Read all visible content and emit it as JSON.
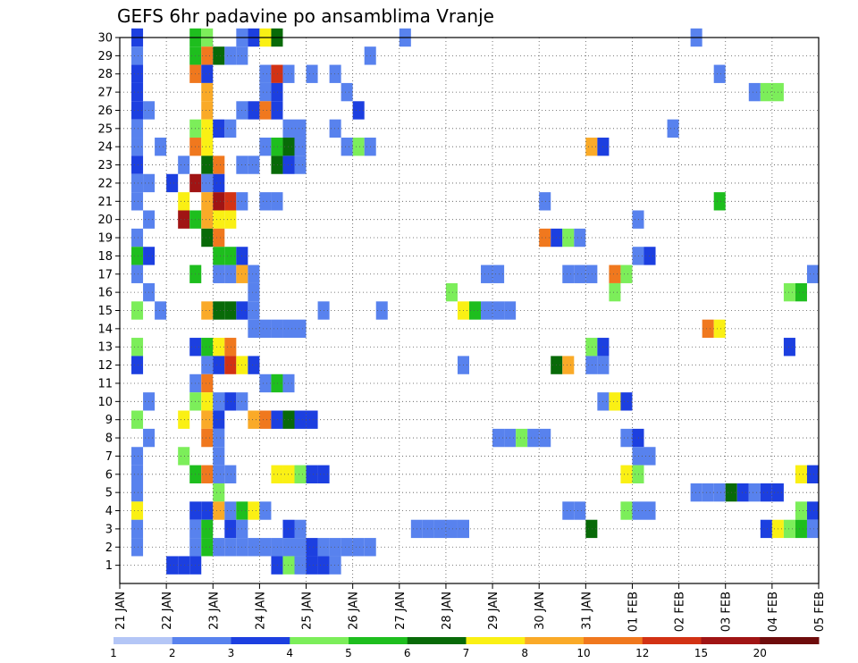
{
  "chart_data": {
    "type": "heatmap",
    "title": "GEFS 6hr padavine po ansamblima Vranje",
    "xlabel": "",
    "ylabel": "",
    "x_ticks": [
      "21 JAN",
      "22 JAN",
      "23 JAN",
      "24 JAN",
      "25 JAN",
      "26 JAN",
      "27 JAN",
      "28 JAN",
      "29 JAN",
      "30 JAN",
      "31 JAN",
      "01 FEB",
      "02 FEB",
      "03 FEB",
      "04 FEB",
      "05 FEB"
    ],
    "y_ticks": [
      "1",
      "2",
      "3",
      "4",
      "5",
      "6",
      "7",
      "8",
      "9",
      "10",
      "11",
      "12",
      "13",
      "14",
      "15",
      "16",
      "17",
      "18",
      "19",
      "20",
      "21",
      "22",
      "23",
      "24",
      "25",
      "26",
      "27",
      "28",
      "29",
      "30"
    ],
    "xlim": [
      0,
      60
    ],
    "ylim": [
      0,
      30
    ],
    "grid": true,
    "colorbar": {
      "position": "bottom",
      "labels": [
        "1",
        "2",
        "3",
        "4",
        "5",
        "6",
        "7",
        "8",
        "10",
        "12",
        "15",
        "20"
      ],
      "colors": [
        "#b4c6f6",
        "#5882ee",
        "#1c3fe0",
        "#7cee5a",
        "#1ebe1e",
        "#086a08",
        "#faf014",
        "#faaa28",
        "#f0781e",
        "#d23214",
        "#a01414",
        "#6e0c0c"
      ]
    },
    "cells": [
      [
        1,
        30,
        2
      ],
      [
        6,
        30,
        4
      ],
      [
        7,
        30,
        3
      ],
      [
        10,
        30,
        1
      ],
      [
        11,
        30,
        2
      ],
      [
        12,
        30,
        6
      ],
      [
        13,
        30,
        5
      ],
      [
        24,
        30,
        1
      ],
      [
        49,
        30,
        1
      ],
      [
        1,
        29,
        1
      ],
      [
        6,
        29,
        4
      ],
      [
        7,
        29,
        8
      ],
      [
        8,
        29,
        5
      ],
      [
        9,
        29,
        1
      ],
      [
        10,
        29,
        1
      ],
      [
        21,
        29,
        1
      ],
      [
        1,
        28,
        2
      ],
      [
        6,
        28,
        8
      ],
      [
        7,
        28,
        2
      ],
      [
        12,
        28,
        1
      ],
      [
        13,
        28,
        9
      ],
      [
        14,
        28,
        1
      ],
      [
        16,
        28,
        1
      ],
      [
        18,
        28,
        1
      ],
      [
        51,
        28,
        1
      ],
      [
        1,
        27,
        2
      ],
      [
        7,
        27,
        7
      ],
      [
        12,
        27,
        1
      ],
      [
        13,
        27,
        2
      ],
      [
        19,
        27,
        1
      ],
      [
        54,
        27,
        1
      ],
      [
        55,
        27,
        3
      ],
      [
        56,
        27,
        3
      ],
      [
        1,
        26,
        2
      ],
      [
        2,
        26,
        1
      ],
      [
        7,
        26,
        7
      ],
      [
        10,
        26,
        1
      ],
      [
        11,
        26,
        2
      ],
      [
        12,
        26,
        8
      ],
      [
        13,
        26,
        2
      ],
      [
        20,
        26,
        2
      ],
      [
        1,
        25,
        1
      ],
      [
        6,
        25,
        3
      ],
      [
        7,
        25,
        6
      ],
      [
        8,
        25,
        2
      ],
      [
        9,
        25,
        1
      ],
      [
        14,
        25,
        1
      ],
      [
        15,
        25,
        1
      ],
      [
        18,
        25,
        1
      ],
      [
        47,
        25,
        1
      ],
      [
        1,
        24,
        1
      ],
      [
        3,
        24,
        1
      ],
      [
        6,
        24,
        8
      ],
      [
        7,
        24,
        6
      ],
      [
        12,
        24,
        1
      ],
      [
        13,
        24,
        4
      ],
      [
        14,
        24,
        5
      ],
      [
        15,
        24,
        1
      ],
      [
        19,
        24,
        1
      ],
      [
        20,
        24,
        3
      ],
      [
        21,
        24,
        1
      ],
      [
        40,
        24,
        7
      ],
      [
        41,
        24,
        2
      ],
      [
        1,
        23,
        2
      ],
      [
        5,
        23,
        1
      ],
      [
        7,
        23,
        5
      ],
      [
        8,
        23,
        8
      ],
      [
        10,
        23,
        1
      ],
      [
        11,
        23,
        1
      ],
      [
        13,
        23,
        5
      ],
      [
        14,
        23,
        2
      ],
      [
        15,
        23,
        1
      ],
      [
        1,
        22,
        1
      ],
      [
        2,
        22,
        1
      ],
      [
        4,
        22,
        2
      ],
      [
        6,
        22,
        10
      ],
      [
        7,
        22,
        1
      ],
      [
        8,
        22,
        2
      ],
      [
        1,
        21,
        1
      ],
      [
        5,
        21,
        6
      ],
      [
        7,
        21,
        7
      ],
      [
        8,
        21,
        10
      ],
      [
        9,
        21,
        9
      ],
      [
        10,
        21,
        1
      ],
      [
        12,
        21,
        1
      ],
      [
        13,
        21,
        1
      ],
      [
        36,
        21,
        1
      ],
      [
        51,
        21,
        4
      ],
      [
        2,
        20,
        1
      ],
      [
        5,
        20,
        10
      ],
      [
        6,
        20,
        4
      ],
      [
        7,
        20,
        7
      ],
      [
        8,
        20,
        6
      ],
      [
        9,
        20,
        6
      ],
      [
        44,
        20,
        1
      ],
      [
        1,
        19,
        1
      ],
      [
        7,
        19,
        5
      ],
      [
        8,
        19,
        8
      ],
      [
        36,
        19,
        8
      ],
      [
        37,
        19,
        2
      ],
      [
        38,
        19,
        3
      ],
      [
        39,
        19,
        1
      ],
      [
        1,
        18,
        4
      ],
      [
        2,
        18,
        2
      ],
      [
        8,
        18,
        4
      ],
      [
        9,
        18,
        4
      ],
      [
        10,
        18,
        2
      ],
      [
        44,
        18,
        1
      ],
      [
        45,
        18,
        2
      ],
      [
        1,
        17,
        1
      ],
      [
        6,
        17,
        4
      ],
      [
        8,
        17,
        1
      ],
      [
        9,
        17,
        1
      ],
      [
        10,
        17,
        7
      ],
      [
        11,
        17,
        1
      ],
      [
        31,
        17,
        1
      ],
      [
        32,
        17,
        1
      ],
      [
        38,
        17,
        1
      ],
      [
        39,
        17,
        1
      ],
      [
        40,
        17,
        1
      ],
      [
        42,
        17,
        8
      ],
      [
        43,
        17,
        3
      ],
      [
        59,
        17,
        1
      ],
      [
        2,
        16,
        1
      ],
      [
        11,
        16,
        1
      ],
      [
        28,
        16,
        3
      ],
      [
        42,
        16,
        3
      ],
      [
        57,
        16,
        3
      ],
      [
        58,
        16,
        4
      ],
      [
        1,
        15,
        3
      ],
      [
        3,
        15,
        1
      ],
      [
        7,
        15,
        7
      ],
      [
        8,
        15,
        5
      ],
      [
        9,
        15,
        5
      ],
      [
        10,
        15,
        2
      ],
      [
        11,
        15,
        1
      ],
      [
        17,
        15,
        1
      ],
      [
        22,
        15,
        1
      ],
      [
        29,
        15,
        6
      ],
      [
        30,
        15,
        4
      ],
      [
        31,
        15,
        1
      ],
      [
        32,
        15,
        1
      ],
      [
        33,
        15,
        1
      ],
      [
        11,
        14,
        1
      ],
      [
        12,
        14,
        1
      ],
      [
        13,
        14,
        1
      ],
      [
        14,
        14,
        1
      ],
      [
        15,
        14,
        1
      ],
      [
        50,
        14,
        8
      ],
      [
        51,
        14,
        6
      ],
      [
        1,
        13,
        3
      ],
      [
        6,
        13,
        2
      ],
      [
        7,
        13,
        4
      ],
      [
        8,
        13,
        6
      ],
      [
        9,
        13,
        8
      ],
      [
        40,
        13,
        3
      ],
      [
        41,
        13,
        2
      ],
      [
        57,
        13,
        2
      ],
      [
        1,
        12,
        2
      ],
      [
        7,
        12,
        1
      ],
      [
        8,
        12,
        2
      ],
      [
        9,
        12,
        9
      ],
      [
        10,
        12,
        6
      ],
      [
        11,
        12,
        2
      ],
      [
        29,
        12,
        1
      ],
      [
        37,
        12,
        5
      ],
      [
        38,
        12,
        7
      ],
      [
        40,
        12,
        1
      ],
      [
        41,
        12,
        1
      ],
      [
        6,
        11,
        1
      ],
      [
        7,
        11,
        8
      ],
      [
        12,
        11,
        1
      ],
      [
        13,
        11,
        4
      ],
      [
        14,
        11,
        1
      ],
      [
        2,
        10,
        1
      ],
      [
        6,
        10,
        3
      ],
      [
        7,
        10,
        6
      ],
      [
        8,
        10,
        1
      ],
      [
        9,
        10,
        2
      ],
      [
        10,
        10,
        1
      ],
      [
        41,
        10,
        1
      ],
      [
        42,
        10,
        6
      ],
      [
        43,
        10,
        2
      ],
      [
        1,
        9,
        3
      ],
      [
        5,
        9,
        6
      ],
      [
        7,
        9,
        7
      ],
      [
        8,
        9,
        2
      ],
      [
        11,
        9,
        7
      ],
      [
        12,
        9,
        8
      ],
      [
        13,
        9,
        2
      ],
      [
        14,
        9,
        5
      ],
      [
        15,
        9,
        2
      ],
      [
        16,
        9,
        2
      ],
      [
        2,
        8,
        1
      ],
      [
        7,
        8,
        8
      ],
      [
        8,
        8,
        1
      ],
      [
        32,
        8,
        1
      ],
      [
        33,
        8,
        1
      ],
      [
        34,
        8,
        3
      ],
      [
        35,
        8,
        1
      ],
      [
        36,
        8,
        1
      ],
      [
        43,
        8,
        1
      ],
      [
        44,
        8,
        2
      ],
      [
        1,
        7,
        1
      ],
      [
        5,
        7,
        3
      ],
      [
        8,
        7,
        1
      ],
      [
        44,
        7,
        1
      ],
      [
        45,
        7,
        1
      ],
      [
        1,
        6,
        1
      ],
      [
        6,
        6,
        4
      ],
      [
        7,
        6,
        8
      ],
      [
        8,
        6,
        1
      ],
      [
        9,
        6,
        1
      ],
      [
        13,
        6,
        6
      ],
      [
        14,
        6,
        6
      ],
      [
        15,
        6,
        3
      ],
      [
        16,
        6,
        2
      ],
      [
        17,
        6,
        2
      ],
      [
        43,
        6,
        6
      ],
      [
        44,
        6,
        3
      ],
      [
        58,
        6,
        6
      ],
      [
        59,
        6,
        2
      ],
      [
        1,
        5,
        1
      ],
      [
        8,
        5,
        3
      ],
      [
        49,
        5,
        1
      ],
      [
        50,
        5,
        1
      ],
      [
        51,
        5,
        1
      ],
      [
        52,
        5,
        5
      ],
      [
        53,
        5,
        2
      ],
      [
        54,
        5,
        1
      ],
      [
        55,
        5,
        2
      ],
      [
        56,
        5,
        2
      ],
      [
        1,
        4,
        6
      ],
      [
        6,
        4,
        2
      ],
      [
        7,
        4,
        2
      ],
      [
        8,
        4,
        7
      ],
      [
        9,
        4,
        1
      ],
      [
        10,
        4,
        4
      ],
      [
        11,
        4,
        6
      ],
      [
        12,
        4,
        1
      ],
      [
        38,
        4,
        1
      ],
      [
        39,
        4,
        1
      ],
      [
        43,
        4,
        3
      ],
      [
        44,
        4,
        1
      ],
      [
        45,
        4,
        1
      ],
      [
        58,
        4,
        3
      ],
      [
        59,
        4,
        2
      ],
      [
        1,
        3,
        1
      ],
      [
        6,
        3,
        1
      ],
      [
        7,
        3,
        4
      ],
      [
        9,
        3,
        2
      ],
      [
        10,
        3,
        1
      ],
      [
        14,
        3,
        2
      ],
      [
        15,
        3,
        1
      ],
      [
        25,
        3,
        1
      ],
      [
        26,
        3,
        1
      ],
      [
        27,
        3,
        1
      ],
      [
        28,
        3,
        1
      ],
      [
        29,
        3,
        1
      ],
      [
        40,
        3,
        5
      ],
      [
        55,
        3,
        2
      ],
      [
        56,
        3,
        6
      ],
      [
        57,
        3,
        3
      ],
      [
        58,
        3,
        4
      ],
      [
        59,
        3,
        1
      ],
      [
        1,
        2,
        1
      ],
      [
        6,
        2,
        1
      ],
      [
        7,
        2,
        4
      ],
      [
        8,
        2,
        1
      ],
      [
        9,
        2,
        1
      ],
      [
        10,
        2,
        1
      ],
      [
        11,
        2,
        1
      ],
      [
        12,
        2,
        1
      ],
      [
        13,
        2,
        1
      ],
      [
        14,
        2,
        1
      ],
      [
        15,
        2,
        1
      ],
      [
        16,
        2,
        2
      ],
      [
        17,
        2,
        1
      ],
      [
        18,
        2,
        1
      ],
      [
        19,
        2,
        1
      ],
      [
        20,
        2,
        1
      ],
      [
        21,
        2,
        1
      ],
      [
        4,
        1,
        2
      ],
      [
        5,
        1,
        2
      ],
      [
        6,
        1,
        2
      ],
      [
        13,
        1,
        2
      ],
      [
        14,
        1,
        3
      ],
      [
        15,
        1,
        1
      ],
      [
        16,
        1,
        2
      ],
      [
        17,
        1,
        2
      ],
      [
        18,
        1,
        1
      ]
    ]
  }
}
